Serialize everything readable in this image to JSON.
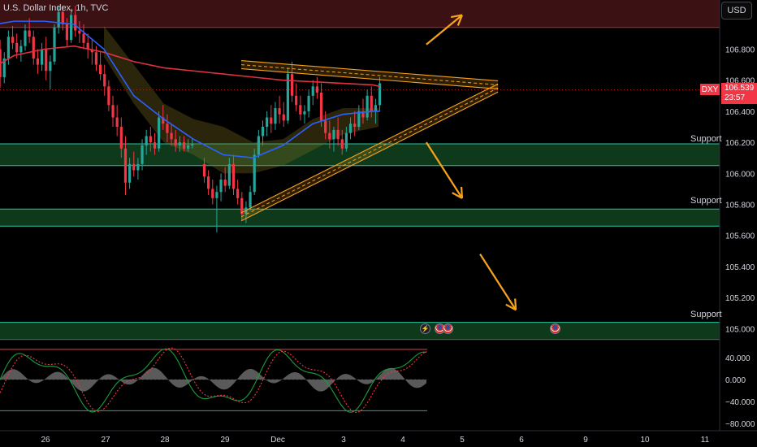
{
  "header": {
    "symbol_title": "U.S. Dollar Index, 1h, TVC"
  },
  "price_axis": {
    "currency_button": "USD",
    "ticks": [
      "106.800",
      "106.600",
      "106.400",
      "106.200",
      "106.000",
      "105.800",
      "105.600",
      "105.400",
      "105.200",
      "105.000"
    ],
    "tick_values": [
      106.8,
      106.6,
      106.4,
      106.2,
      106.0,
      105.8,
      105.6,
      105.4,
      105.2,
      105.0
    ],
    "symbol_tag": "DXY",
    "last_price": "106.539",
    "countdown": "23:57"
  },
  "time_axis": {
    "labels": [
      "26",
      "27",
      "28",
      "29",
      "Dec",
      "3",
      "4",
      "5",
      "6",
      "9",
      "10",
      "11"
    ],
    "positions": [
      0.5,
      1.5,
      2.5,
      3.5,
      4.5,
      5.5,
      6.5,
      7.5,
      8.5,
      9.5,
      10.5,
      11.5
    ]
  },
  "support_zones": [
    {
      "label": "Support",
      "low": 106.05,
      "high": 106.19
    },
    {
      "label": "Support",
      "low": 105.66,
      "high": 105.77
    },
    {
      "label": "Support",
      "low": 104.93,
      "high": 105.04
    }
  ],
  "resistance_zone": {
    "low": 106.94,
    "high": 107.1
  },
  "triangle": {
    "upper_start": [
      4.3,
      106.7
    ],
    "upper_end": [
      8.6,
      106.57
    ],
    "lower_start": [
      4.3,
      105.72
    ],
    "lower_end": [
      8.6,
      106.55
    ]
  },
  "projection_arrows": [
    {
      "from": [
        7.4,
        106.83
      ],
      "to": [
        8.0,
        107.02
      ]
    },
    {
      "from": [
        7.4,
        106.2
      ],
      "to": [
        8.0,
        105.84
      ]
    },
    {
      "from": [
        8.3,
        105.48
      ],
      "to": [
        8.9,
        105.12
      ]
    }
  ],
  "oscillator": {
    "ticks": [
      "40.000",
      "0.000",
      "−40.000",
      "−80.000"
    ],
    "tick_values": [
      40,
      0,
      -40,
      -80
    ],
    "upper_band": 55,
    "lower_band": -57
  },
  "events": [
    {
      "icon": "lightning-icon",
      "x": 7.03
    },
    {
      "icon": "us-flag-icon",
      "x": 7.27
    },
    {
      "icon": "us-flag-icon",
      "x": 7.43
    },
    {
      "icon": "us-flag-icon",
      "x": 9.2
    }
  ],
  "colors": {
    "bull": "#26a69a",
    "bear": "#f23645",
    "ma_red": "#e0313e",
    "ma_blue": "#2962ff",
    "triangle": "#f7a21b",
    "support_fill": "#0f3d1c",
    "support_line": "#26c6a6",
    "resistance_fill": "#3b1114"
  },
  "chart_data": {
    "type": "candlestick",
    "x_unit": "trading day index (0 = 26 Nov)",
    "ylim": [
      104.65,
      107.1
    ],
    "candles": [
      [
        0.05,
        106.98,
        107.02,
        106.9,
        106.93
      ],
      [
        0.12,
        106.93,
        107.04,
        106.85,
        106.88
      ],
      [
        0.19,
        106.88,
        106.95,
        106.76,
        106.8
      ],
      [
        0.26,
        106.8,
        106.86,
        106.55,
        106.62
      ],
      [
        0.33,
        106.62,
        106.78,
        106.58,
        106.74
      ],
      [
        0.4,
        106.74,
        106.92,
        106.7,
        106.88
      ],
      [
        0.47,
        106.88,
        106.95,
        106.8,
        106.84
      ],
      [
        0.54,
        106.84,
        106.9,
        106.74,
        106.78
      ],
      [
        0.61,
        106.78,
        106.86,
        106.72,
        106.82
      ],
      [
        0.68,
        106.82,
        106.96,
        106.79,
        106.92
      ],
      [
        0.75,
        106.92,
        107.0,
        106.84,
        106.88
      ],
      [
        0.82,
        106.88,
        106.92,
        106.7,
        106.74
      ],
      [
        0.89,
        106.74,
        106.8,
        106.64,
        106.7
      ],
      [
        0.96,
        106.7,
        106.84,
        106.66,
        106.8
      ],
      [
        1.03,
        106.8,
        106.88,
        106.6,
        106.66
      ],
      [
        1.1,
        106.66,
        106.76,
        106.54,
        106.72
      ],
      [
        1.17,
        106.72,
        106.96,
        106.7,
        106.94
      ],
      [
        1.24,
        106.94,
        107.08,
        106.9,
        107.04
      ],
      [
        1.31,
        107.04,
        107.08,
        106.92,
        106.96
      ],
      [
        1.38,
        106.96,
        107.0,
        106.82,
        106.86
      ],
      [
        1.45,
        106.86,
        107.06,
        106.84,
        107.02
      ],
      [
        1.52,
        107.02,
        107.08,
        106.88,
        106.92
      ],
      [
        1.59,
        106.92,
        106.98,
        106.84,
        106.9
      ],
      [
        1.66,
        106.9,
        106.96,
        106.8,
        106.84
      ],
      [
        1.73,
        106.84,
        106.9,
        106.74,
        106.8
      ],
      [
        1.8,
        106.8,
        106.86,
        106.7,
        106.78
      ],
      [
        1.87,
        106.78,
        106.82,
        106.66,
        106.7
      ],
      [
        1.94,
        106.7,
        106.78,
        106.6,
        106.64
      ],
      [
        2.01,
        106.64,
        106.7,
        106.5,
        106.56
      ],
      [
        2.08,
        106.56,
        106.6,
        106.4,
        106.44
      ],
      [
        2.15,
        106.44,
        106.5,
        106.3,
        106.36
      ],
      [
        2.22,
        106.36,
        106.44,
        106.24,
        106.3
      ],
      [
        2.29,
        106.3,
        106.36,
        106.1,
        106.16
      ],
      [
        2.36,
        106.16,
        106.24,
        105.86,
        105.94
      ],
      [
        2.43,
        105.94,
        106.1,
        105.9,
        106.06
      ],
      [
        2.5,
        106.06,
        106.14,
        105.98,
        106.02
      ],
      [
        2.57,
        106.02,
        106.1,
        105.96,
        106.06
      ],
      [
        2.64,
        106.06,
        106.22,
        106.02,
        106.18
      ],
      [
        2.71,
        106.18,
        106.28,
        106.12,
        106.24
      ],
      [
        2.78,
        106.24,
        106.3,
        106.14,
        106.2
      ],
      [
        2.85,
        106.2,
        106.26,
        106.12,
        106.16
      ],
      [
        2.92,
        106.16,
        106.4,
        106.14,
        106.36
      ],
      [
        2.99,
        106.36,
        106.44,
        106.28,
        106.32
      ],
      [
        3.06,
        106.32,
        106.38,
        106.2,
        106.26
      ],
      [
        3.13,
        106.26,
        106.32,
        106.18,
        106.22
      ],
      [
        3.2,
        106.22,
        106.28,
        106.14,
        106.18
      ],
      [
        3.27,
        106.18,
        106.24,
        106.14,
        106.2
      ],
      [
        3.34,
        106.2,
        106.24,
        106.14,
        106.16
      ],
      [
        3.41,
        106.16,
        106.22,
        106.14,
        106.18
      ],
      [
        3.48,
        106.18,
        106.22,
        106.16,
        106.19
      ],
      [
        3.68,
        106.06,
        106.1,
        105.94,
        105.98
      ],
      [
        3.75,
        105.98,
        106.02,
        105.86,
        105.9
      ],
      [
        3.82,
        105.9,
        105.96,
        105.8,
        105.84
      ],
      [
        3.89,
        105.84,
        105.92,
        105.62,
        105.88
      ],
      [
        3.96,
        105.88,
        106.0,
        105.82,
        105.96
      ],
      [
        4.03,
        105.96,
        106.04,
        105.88,
        105.92
      ],
      [
        4.1,
        105.92,
        106.1,
        105.9,
        106.06
      ],
      [
        4.17,
        106.06,
        106.12,
        105.86,
        105.9
      ],
      [
        4.24,
        105.9,
        105.96,
        105.8,
        105.84
      ],
      [
        4.31,
        105.84,
        105.88,
        105.7,
        105.74
      ],
      [
        4.38,
        105.74,
        105.82,
        105.68,
        105.78
      ],
      [
        4.45,
        105.78,
        105.92,
        105.76,
        105.88
      ],
      [
        4.52,
        105.88,
        106.16,
        105.86,
        106.12
      ],
      [
        4.59,
        106.12,
        106.28,
        106.1,
        106.24
      ],
      [
        4.66,
        106.24,
        106.34,
        106.18,
        106.3
      ],
      [
        4.73,
        106.3,
        106.4,
        106.24,
        106.36
      ],
      [
        4.8,
        106.36,
        106.44,
        106.26,
        106.32
      ],
      [
        4.87,
        106.32,
        106.46,
        106.28,
        106.42
      ],
      [
        4.94,
        106.42,
        106.5,
        106.32,
        106.38
      ],
      [
        5.01,
        106.38,
        106.46,
        106.3,
        106.34
      ],
      [
        5.08,
        106.34,
        106.68,
        106.32,
        106.64
      ],
      [
        5.15,
        106.64,
        106.72,
        106.46,
        106.5
      ],
      [
        5.22,
        106.5,
        106.58,
        106.4,
        106.44
      ],
      [
        5.29,
        106.44,
        106.5,
        106.34,
        106.38
      ],
      [
        5.36,
        106.38,
        106.44,
        106.32,
        106.4
      ],
      [
        5.43,
        106.4,
        106.54,
        106.36,
        106.5
      ],
      [
        5.5,
        106.5,
        106.6,
        106.44,
        106.56
      ],
      [
        5.57,
        106.56,
        106.62,
        106.48,
        106.52
      ],
      [
        5.64,
        106.52,
        106.58,
        106.3,
        106.34
      ],
      [
        5.71,
        106.34,
        106.4,
        106.22,
        106.26
      ],
      [
        5.78,
        106.26,
        106.34,
        106.16,
        106.22
      ],
      [
        5.85,
        106.22,
        106.3,
        106.14,
        106.28
      ],
      [
        5.92,
        106.28,
        106.36,
        106.18,
        106.22
      ],
      [
        5.99,
        106.22,
        106.28,
        106.12,
        106.16
      ],
      [
        6.06,
        106.16,
        106.3,
        106.14,
        106.26
      ],
      [
        6.13,
        106.26,
        106.36,
        106.22,
        106.32
      ],
      [
        6.2,
        106.32,
        106.4,
        106.24,
        106.3
      ],
      [
        6.27,
        106.3,
        106.44,
        106.28,
        106.4
      ],
      [
        6.34,
        106.4,
        106.48,
        106.32,
        106.36
      ],
      [
        6.41,
        106.36,
        106.54,
        106.34,
        106.5
      ],
      [
        6.48,
        106.5,
        106.56,
        106.36,
        106.4
      ],
      [
        6.55,
        106.4,
        106.48,
        106.32,
        106.44
      ],
      [
        6.62,
        106.44,
        106.62,
        106.4,
        106.58
      ]
    ],
    "ma_red": [
      [
        0,
        106.65
      ],
      [
        0.5,
        106.76
      ],
      [
        1.0,
        106.8
      ],
      [
        1.5,
        106.82
      ],
      [
        2.0,
        106.78
      ],
      [
        2.5,
        106.72
      ],
      [
        3.0,
        106.68
      ],
      [
        3.5,
        106.66
      ],
      [
        4.0,
        106.64
      ],
      [
        4.5,
        106.62
      ],
      [
        5.0,
        106.6
      ],
      [
        5.5,
        106.59
      ],
      [
        6.0,
        106.58
      ],
      [
        6.5,
        106.57
      ],
      [
        6.62,
        106.56
      ]
    ],
    "ma_blue": [
      [
        0,
        106.95
      ],
      [
        0.5,
        106.98
      ],
      [
        1.0,
        106.98
      ],
      [
        1.5,
        106.96
      ],
      [
        2.0,
        106.8
      ],
      [
        2.5,
        106.5
      ],
      [
        3.0,
        106.35
      ],
      [
        3.5,
        106.22
      ],
      [
        4.0,
        106.12
      ],
      [
        4.5,
        106.1
      ],
      [
        5.0,
        106.18
      ],
      [
        5.5,
        106.32
      ],
      [
        6.0,
        106.38
      ],
      [
        6.5,
        106.4
      ],
      [
        6.62,
        106.4
      ]
    ]
  }
}
